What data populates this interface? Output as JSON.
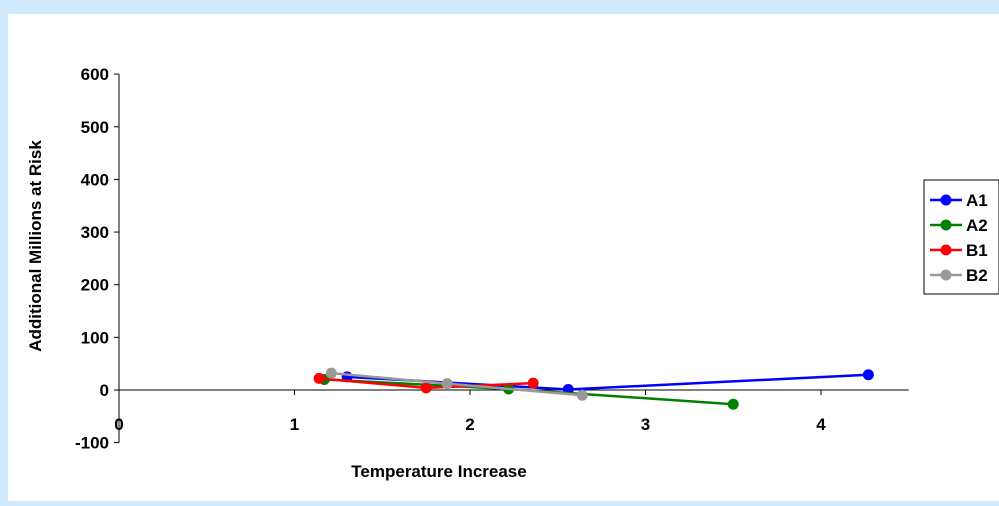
{
  "chart_data": {
    "type": "line",
    "xlabel": "Temperature Increase",
    "ylabel": "Additional Millions at Risk",
    "xlim": [
      0,
      4.5
    ],
    "ylim": [
      -100,
      600
    ],
    "xticks": [
      0,
      1,
      2,
      3,
      4
    ],
    "yticks": [
      -100,
      0,
      100,
      200,
      300,
      400,
      500,
      600
    ],
    "grid": false,
    "legend": "right",
    "series": [
      {
        "name": "A1",
        "color": "#0000ff",
        "points": [
          [
            1.3,
            25
          ],
          [
            2.56,
            1
          ],
          [
            4.27,
            29
          ]
        ]
      },
      {
        "name": "A2",
        "color": "#008000",
        "points": [
          [
            1.17,
            20
          ],
          [
            2.22,
            2
          ],
          [
            3.5,
            -27
          ]
        ]
      },
      {
        "name": "B1",
        "color": "#ff0000",
        "points": [
          [
            1.14,
            22
          ],
          [
            1.75,
            4
          ],
          [
            2.36,
            13
          ]
        ]
      },
      {
        "name": "B2",
        "color": "#999999",
        "points": [
          [
            1.21,
            32
          ],
          [
            1.87,
            12
          ],
          [
            2.64,
            -10
          ]
        ]
      }
    ]
  }
}
